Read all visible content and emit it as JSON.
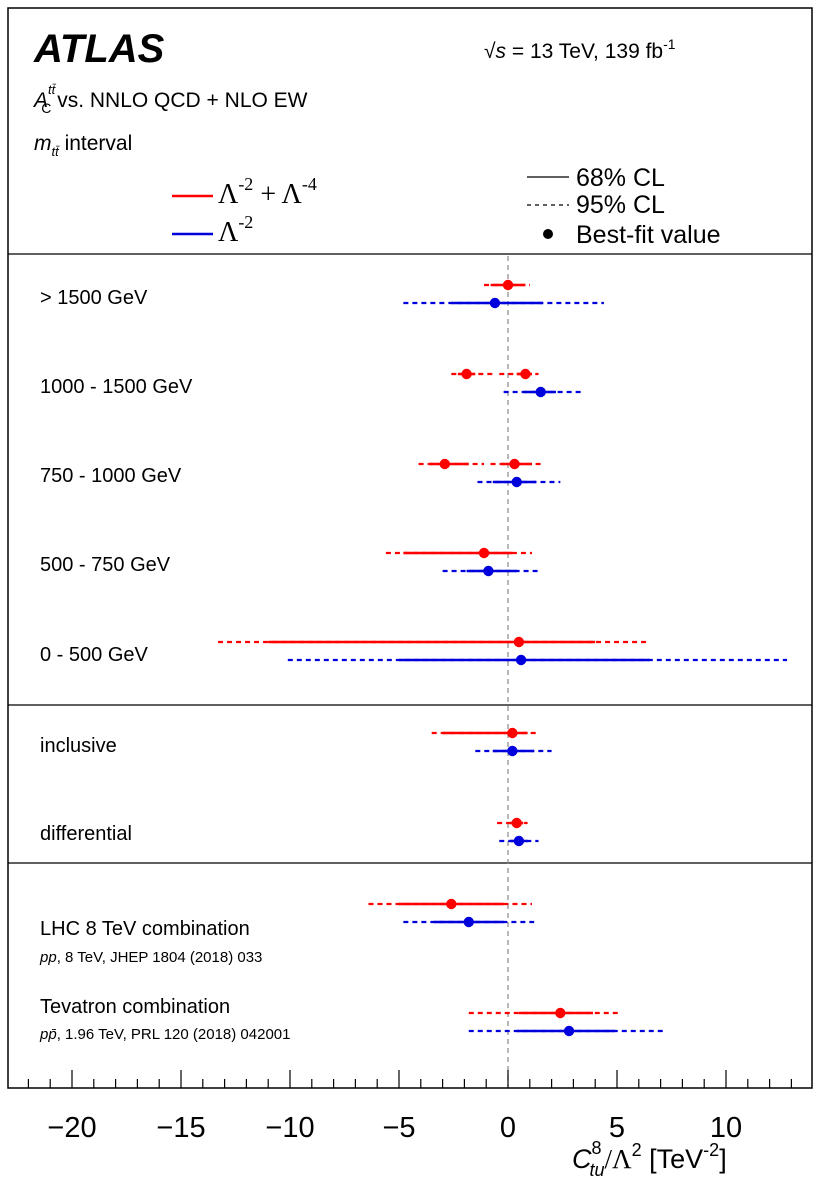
{
  "header": {
    "experiment": "ATLAS",
    "energy_lumi": {
      "sqrt": "√",
      "s": "s",
      "text": " = 13 TeV, 139 fb",
      "sup": "-1"
    },
    "observable": {
      "A": "A",
      "sup": "tt̄",
      "sub": "C",
      "text": " vs. NNLO QCD + NLO EW"
    },
    "interval": {
      "m": "m",
      "sub": "tt̄",
      "text": " interval"
    }
  },
  "legend": {
    "red_label": {
      "base": "Λ",
      "sup1": "-2",
      "plus": " + Λ",
      "sup2": "-4"
    },
    "blue_label": {
      "base": "Λ",
      "sup1": "-2"
    },
    "cl68": "68% CL",
    "cl95": "95% CL",
    "best_fit": "Best-fit value"
  },
  "colors": {
    "red": "#ff0000",
    "blue": "#0000dd",
    "zero_line": "#888888"
  },
  "chart_data": {
    "type": "scatter",
    "subtype": "horizontal-interval-plot",
    "xlim": [
      -23,
      13.5
    ],
    "xticks": [
      -20,
      -15,
      -10,
      -5,
      0,
      5,
      10
    ],
    "xtick_labels": [
      "−20",
      "−15",
      "−10",
      "−5",
      "0",
      "5",
      "10"
    ],
    "xlabel": {
      "C": "C",
      "sup": "8",
      "sub": "tu",
      "rest": "/Λ",
      "sup2": "2",
      "unit": " [TeV",
      "unit_sup": "-2",
      "close": "]"
    },
    "zero_line": 0,
    "series": [
      {
        "name": "Λ-2 + Λ-4",
        "color": "red"
      },
      {
        "name": "Λ-2",
        "color": "blue"
      }
    ],
    "sections": [
      {
        "rows": [
          {
            "label": "> 1500 GeV",
            "red": {
              "best": [
                0
              ],
              "cl68": [
                [
                  -0.8,
                  0.8
                ]
              ],
              "cl95": [
                [
                  -1.1,
                  1.0
                ]
              ]
            },
            "blue": {
              "best": [
                -0.6
              ],
              "cl68": [
                [
                  -2.6,
                  1.6
                ]
              ],
              "cl95": [
                [
                  -4.8,
                  4.4
                ]
              ]
            }
          },
          {
            "label": "1000 - 1500 GeV",
            "red": {
              "best": [
                -1.9,
                0.8
              ],
              "cl68": [
                [
                  -2.3,
                  -1.5
                ],
                [
                  0.4,
                  1.1
                ]
              ],
              "cl95": [
                [
                  -2.6,
                  -0.7
                ],
                [
                  -0.4,
                  1.4
                ]
              ]
            },
            "blue": {
              "best": [
                1.5
              ],
              "cl68": [
                [
                  0.7,
                  2.2
                ]
              ],
              "cl95": [
                [
                  -0.2,
                  3.4
                ]
              ]
            }
          },
          {
            "label": "750 - 1000 GeV",
            "red": {
              "best": [
                -2.9,
                0.3
              ],
              "cl68": [
                [
                  -3.6,
                  -1.8
                ],
                [
                  -0.3,
                  1.1
                ]
              ],
              "cl95": [
                [
                  -4.1,
                  -1.1
                ],
                [
                  -0.8,
                  1.5
                ]
              ]
            },
            "blue": {
              "best": [
                0.4
              ],
              "cl68": [
                [
                  -0.7,
                  1.3
                ]
              ],
              "cl95": [
                [
                  -1.4,
                  2.4
                ]
              ]
            }
          },
          {
            "label": "500 - 750 GeV",
            "red": {
              "best": [
                -1.1
              ],
              "cl68": [
                [
                  -4.8,
                  0.2
                ]
              ],
              "cl95": [
                [
                  -5.6,
                  1.1
                ]
              ]
            },
            "blue": {
              "best": [
                -0.9
              ],
              "cl68": [
                [
                  -1.9,
                  0.4
                ]
              ],
              "cl95": [
                [
                  -3.0,
                  1.5
                ]
              ]
            }
          },
          {
            "label": "0 - 500 GeV",
            "red": {
              "best": [
                0.5
              ],
              "cl68": [
                [
                  -11.0,
                  4.0
                ]
              ],
              "cl95": [
                [
                  -13.3,
                  6.5
                ]
              ]
            },
            "blue": {
              "best": [
                0.6
              ],
              "cl68": [
                [
                  -5.0,
                  6.5
                ]
              ],
              "cl95": [
                [
                  -10.1,
                  12.8
                ]
              ]
            }
          }
        ]
      },
      {
        "rows": [
          {
            "label": "inclusive",
            "red": {
              "best": [
                0.2
              ],
              "cl68": [
                [
                  -3.0,
                  0.9
                ]
              ],
              "cl95": [
                [
                  -3.5,
                  1.3
                ]
              ]
            },
            "blue": {
              "best": [
                0.2
              ],
              "cl68": [
                [
                  -0.7,
                  1.2
                ]
              ],
              "cl95": [
                [
                  -1.5,
                  2.0
                ]
              ]
            }
          },
          {
            "label": "differential",
            "red": {
              "best": [
                0.4
              ],
              "cl68": [
                [
                  0.1,
                  0.7
                ]
              ],
              "cl95": [
                [
                  -0.5,
                  0.9
                ]
              ]
            },
            "blue": {
              "best": [
                0.5
              ],
              "cl68": [
                [
                  0.1,
                  0.9
                ]
              ],
              "cl95": [
                [
                  -0.4,
                  1.4
                ]
              ]
            }
          }
        ]
      },
      {
        "rows": [
          {
            "label": "LHC 8 TeV combination",
            "sublabel": {
              "ital": "pp",
              "text": ", 8 TeV, JHEP 1804 (2018) 033"
            },
            "red": {
              "best": [
                -2.6
              ],
              "cl68": [
                [
                  -5.0,
                  -0.2
                ]
              ],
              "cl95": [
                [
                  -6.4,
                  1.1
                ]
              ]
            },
            "blue": {
              "best": [
                -1.8
              ],
              "cl68": [
                [
                  -3.4,
                  -0.2
                ]
              ],
              "cl95": [
                [
                  -4.8,
                  1.2
                ]
              ]
            }
          },
          {
            "label": "Tevatron combination",
            "sublabel": {
              "ital": "pp̄",
              "text": ", 1.96 TeV, PRL 120 (2018) 042001"
            },
            "red": {
              "best": [
                2.4
              ],
              "cl68": [
                [
                  0.5,
                  3.9
                ]
              ],
              "cl95": [
                [
                  -1.8,
                  5.1
                ]
              ]
            },
            "blue": {
              "best": [
                2.8
              ],
              "cl68": [
                [
                  0.4,
                  4.9
                ]
              ],
              "cl95": [
                [
                  -1.8,
                  7.1
                ]
              ]
            }
          }
        ]
      }
    ]
  }
}
